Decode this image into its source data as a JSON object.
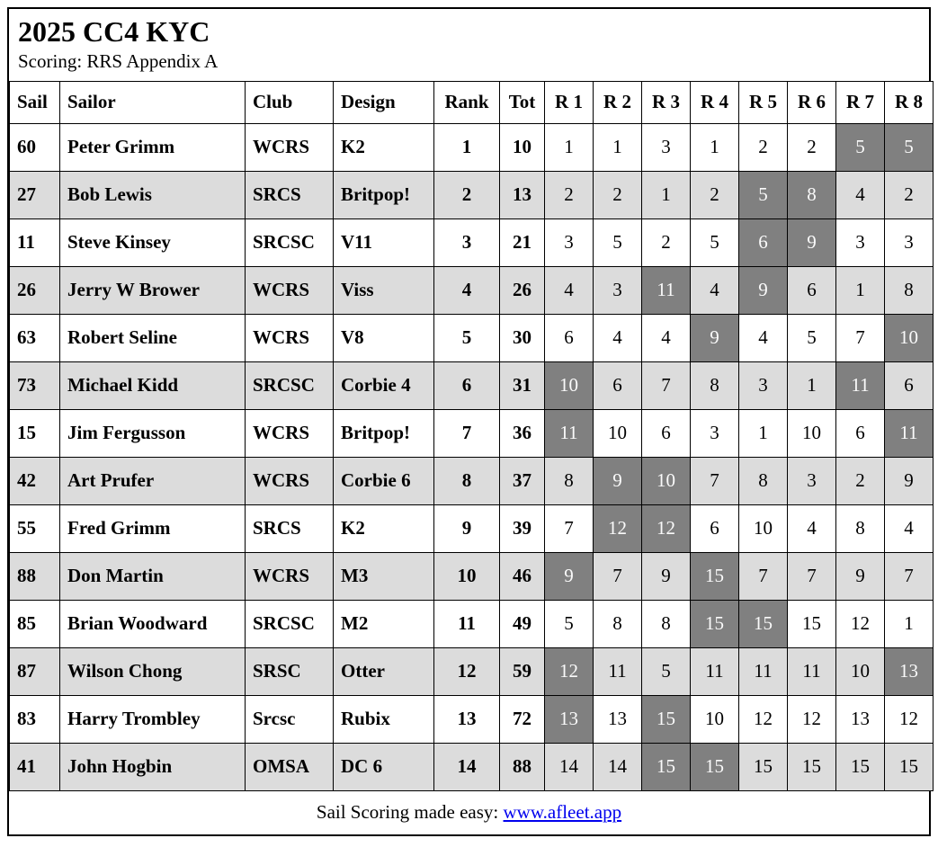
{
  "page": {
    "title": "2025 CC4 KYC",
    "subtitle": "Scoring: RRS Appendix A"
  },
  "table": {
    "columns": [
      "Sail",
      "Sailor",
      "Club",
      "Design",
      "Rank",
      "Tot",
      "R 1",
      "R 2",
      "R 3",
      "R 4",
      "R 5",
      "R 6",
      "R 7",
      "R 8"
    ],
    "rows": [
      {
        "sail": "60",
        "sailor": "Peter Grimm",
        "club": "WCRS",
        "design": "K2",
        "rank": "1",
        "tot": "10",
        "scores": [
          "1",
          "1",
          "3",
          "1",
          "2",
          "2",
          "5",
          "5"
        ],
        "discard_races": [
          7,
          8
        ]
      },
      {
        "sail": "27",
        "sailor": "Bob Lewis",
        "club": "SRCS",
        "design": "Britpop!",
        "rank": "2",
        "tot": "13",
        "scores": [
          "2",
          "2",
          "1",
          "2",
          "5",
          "8",
          "4",
          "2"
        ],
        "discard_races": [
          5,
          6
        ]
      },
      {
        "sail": "11",
        "sailor": "Steve Kinsey",
        "club": "SRCSC",
        "design": "V11",
        "rank": "3",
        "tot": "21",
        "scores": [
          "3",
          "5",
          "2",
          "5",
          "6",
          "9",
          "3",
          "3"
        ],
        "discard_races": [
          5,
          6
        ]
      },
      {
        "sail": "26",
        "sailor": "Jerry W Brower",
        "club": "WCRS",
        "design": "Viss",
        "rank": "4",
        "tot": "26",
        "scores": [
          "4",
          "3",
          "11",
          "4",
          "9",
          "6",
          "1",
          "8"
        ],
        "discard_races": [
          3,
          5
        ]
      },
      {
        "sail": "63",
        "sailor": "Robert Seline",
        "club": "WCRS",
        "design": "V8",
        "rank": "5",
        "tot": "30",
        "scores": [
          "6",
          "4",
          "4",
          "9",
          "4",
          "5",
          "7",
          "10"
        ],
        "discard_races": [
          4,
          8
        ]
      },
      {
        "sail": "73",
        "sailor": "Michael Kidd",
        "club": "SRCSC",
        "design": "Corbie 4",
        "rank": "6",
        "tot": "31",
        "scores": [
          "10",
          "6",
          "7",
          "8",
          "3",
          "1",
          "11",
          "6"
        ],
        "discard_races": [
          1,
          7
        ]
      },
      {
        "sail": "15",
        "sailor": "Jim Fergusson",
        "club": "WCRS",
        "design": "Britpop!",
        "rank": "7",
        "tot": "36",
        "scores": [
          "11",
          "10",
          "6",
          "3",
          "1",
          "10",
          "6",
          "11"
        ],
        "discard_races": [
          1,
          8
        ]
      },
      {
        "sail": "42",
        "sailor": "Art Prufer",
        "club": "WCRS",
        "design": "Corbie 6",
        "rank": "8",
        "tot": "37",
        "scores": [
          "8",
          "9",
          "10",
          "7",
          "8",
          "3",
          "2",
          "9"
        ],
        "discard_races": [
          2,
          3
        ]
      },
      {
        "sail": "55",
        "sailor": "Fred Grimm",
        "club": "SRCS",
        "design": "K2",
        "rank": "9",
        "tot": "39",
        "scores": [
          "7",
          "12",
          "12",
          "6",
          "10",
          "4",
          "8",
          "4"
        ],
        "discard_races": [
          2,
          3
        ]
      },
      {
        "sail": "88",
        "sailor": "Don Martin",
        "club": "WCRS",
        "design": "M3",
        "rank": "10",
        "tot": "46",
        "scores": [
          "9",
          "7",
          "9",
          "15",
          "7",
          "7",
          "9",
          "7"
        ],
        "discard_races": [
          1,
          4
        ]
      },
      {
        "sail": "85",
        "sailor": "Brian Woodward",
        "club": "SRCSC",
        "design": "M2",
        "rank": "11",
        "tot": "49",
        "scores": [
          "5",
          "8",
          "8",
          "15",
          "15",
          "15",
          "12",
          "1"
        ],
        "discard_races": [
          4,
          5
        ]
      },
      {
        "sail": "87",
        "sailor": "Wilson Chong",
        "club": "SRSC",
        "design": "Otter",
        "rank": "12",
        "tot": "59",
        "scores": [
          "12",
          "11",
          "5",
          "11",
          "11",
          "11",
          "10",
          "13"
        ],
        "discard_races": [
          1,
          8
        ]
      },
      {
        "sail": "83",
        "sailor": "Harry Trombley",
        "club": "Srcsc",
        "design": "Rubix",
        "rank": "13",
        "tot": "72",
        "scores": [
          "13",
          "13",
          "15",
          "10",
          "12",
          "12",
          "13",
          "12"
        ],
        "discard_races": [
          1,
          3
        ]
      },
      {
        "sail": "41",
        "sailor": "John Hogbin",
        "club": "OMSA",
        "design": "DC 6",
        "rank": "14",
        "tot": "88",
        "scores": [
          "14",
          "14",
          "15",
          "15",
          "15",
          "15",
          "15",
          "15"
        ],
        "discard_races": [
          3,
          4
        ]
      }
    ]
  },
  "footer": {
    "text": "Sail Scoring made easy: ",
    "link": "www.afleet.app"
  },
  "colors": {
    "row_alt": "#dcdcdc",
    "discard_bg": "#808080",
    "discard_text": "#fafafa",
    "link": "#0000ee"
  }
}
